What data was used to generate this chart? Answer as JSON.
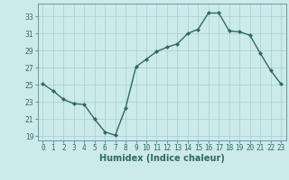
{
  "x": [
    0,
    1,
    2,
    3,
    4,
    5,
    6,
    7,
    8,
    9,
    10,
    11,
    12,
    13,
    14,
    15,
    16,
    17,
    18,
    19,
    20,
    21,
    22,
    23
  ],
  "y": [
    25.1,
    24.3,
    23.3,
    22.8,
    22.7,
    21.0,
    19.5,
    19.1,
    22.3,
    27.1,
    28.0,
    28.9,
    29.4,
    29.8,
    31.0,
    31.5,
    33.4,
    33.4,
    31.3,
    31.2,
    30.8,
    28.7,
    26.7,
    25.1
  ],
  "line_color": "#2e6b5e",
  "marker": "D",
  "marker_size": 2.0,
  "bg_color": "#cceaea",
  "grid_color": "#aacccc",
  "xlabel": "Humidex (Indice chaleur)",
  "xlim": [
    -0.5,
    23.5
  ],
  "ylim": [
    18.5,
    34.5
  ],
  "yticks": [
    19,
    21,
    23,
    25,
    27,
    29,
    31,
    33
  ],
  "xtick_labels": [
    "0",
    "1",
    "2",
    "3",
    "4",
    "5",
    "6",
    "7",
    "8",
    "9",
    "10",
    "11",
    "12",
    "13",
    "14",
    "15",
    "16",
    "17",
    "18",
    "19",
    "20",
    "21",
    "22",
    "23"
  ],
  "tick_fontsize": 5.5,
  "xlabel_fontsize": 7.0,
  "line_width": 1.0
}
